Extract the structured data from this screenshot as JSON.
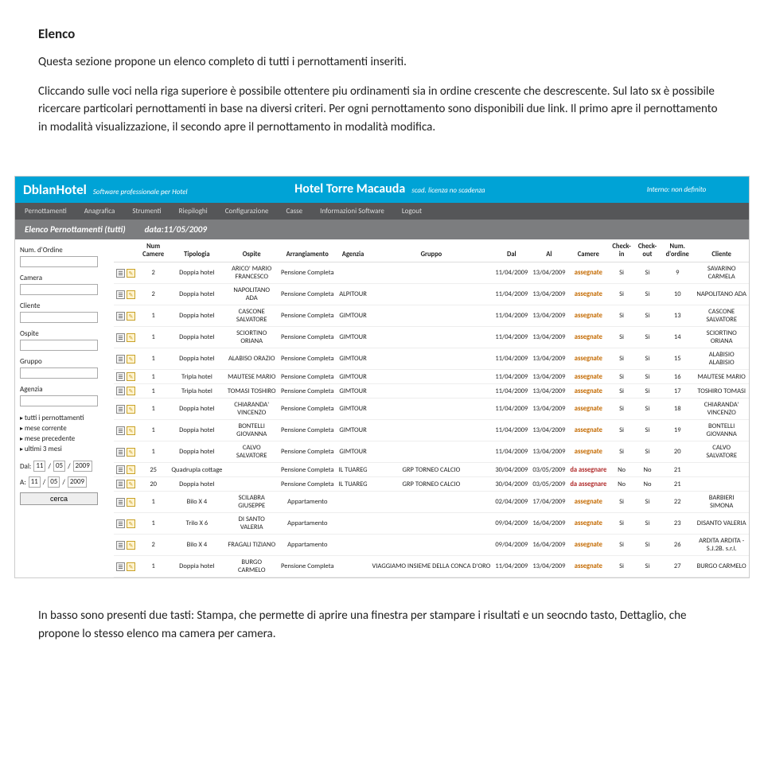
{
  "doc": {
    "title": "Elenco",
    "p1": "Questa sezione propone un elenco completo di tutti i pernottamenti inseriti.",
    "p2": "Cliccando sulle voci nella riga superiore è possibile ottentere piu ordinamenti sia in ordine crescente che descrescente. Sul lato sx è possibile ricercare particolari pernottamenti in base na diversi criteri. Per ogni pernottamento sono disponibili due link. Il primo apre il pernottamento in modalità visualizzazione, il secondo apre il pernottamento in modalità modifica.",
    "p3": "In basso sono presenti due tasti: Stampa, che permette di aprire una finestra per stampare i risultati e un seocndo tasto, Dettaglio, che propone lo stesso elenco ma camera per camera."
  },
  "header": {
    "brand": "DblanHotel",
    "tagline": "Software professionale per Hotel",
    "hotel": "Hotel Torre Macauda",
    "scadLabel": "scad.",
    "scadText": "licenza no scadenza",
    "interno": "Interno: non definito"
  },
  "nav": [
    "Pernottamenti",
    "Anagrafica",
    "Strumenti",
    "Riepiloghi",
    "Configurazione",
    "Casse",
    "Informazioni Software",
    "Logout"
  ],
  "subtitle": {
    "title": "Elenco Pernottamenti (tutti)",
    "date": "data:11/05/2009"
  },
  "sidebar": {
    "fields": [
      "Num. d'Ordine",
      "Camera",
      "Cliente",
      "Ospite",
      "Gruppo",
      "Agenzia"
    ],
    "filters": [
      "tutti i pernottamenti",
      "mese corrente",
      "mese precedente",
      "ultimi 3 mesi"
    ],
    "dalLabel": "Dal:",
    "aLabel": "A:",
    "date": {
      "d": "11",
      "m": "05",
      "y": "2009"
    },
    "cerca": "cerca"
  },
  "columns": [
    "",
    "Num Camere",
    "Tipologia",
    "Ospite",
    "Arrangiamento",
    "Agenzia",
    "Gruppo",
    "Dal",
    "Al",
    "Camere",
    "Check-in",
    "Check-out",
    "Num. d'ordine",
    "Cliente"
  ],
  "rows": [
    {
      "num": "2",
      "tip": "Doppia hotel",
      "osp": "ARICO' MARIO FRANCESCO",
      "arr": "Pensione Completa",
      "age": "",
      "grp": "",
      "dal": "11/04/2009",
      "al": "13/04/2009",
      "cam": "assegnate",
      "cin": "Si",
      "cout": "Si",
      "ord": "9",
      "cli": "SAVARINO CARMELA"
    },
    {
      "num": "2",
      "tip": "Doppia hotel",
      "osp": "NAPOLITANO ADA",
      "arr": "Pensione Completa",
      "age": "ALPITOUR",
      "grp": "",
      "dal": "11/04/2009",
      "al": "13/04/2009",
      "cam": "assegnate",
      "cin": "Si",
      "cout": "Si",
      "ord": "10",
      "cli": "NAPOLITANO ADA"
    },
    {
      "num": "1",
      "tip": "Doppia hotel",
      "osp": "CASCONE SALVATORE",
      "arr": "Pensione Completa",
      "age": "GIMTOUR",
      "grp": "",
      "dal": "11/04/2009",
      "al": "13/04/2009",
      "cam": "assegnate",
      "cin": "Si",
      "cout": "Si",
      "ord": "13",
      "cli": "CASCONE SALVATORE"
    },
    {
      "num": "1",
      "tip": "Doppia hotel",
      "osp": "SCIORTINO ORIANA",
      "arr": "Pensione Completa",
      "age": "GIMTOUR",
      "grp": "",
      "dal": "11/04/2009",
      "al": "13/04/2009",
      "cam": "assegnate",
      "cin": "Si",
      "cout": "Si",
      "ord": "14",
      "cli": "SCIORTINO ORIANA"
    },
    {
      "num": "1",
      "tip": "Doppia hotel",
      "osp": "ALABISO ORAZIO",
      "arr": "Pensione Completa",
      "age": "GIMTOUR",
      "grp": "",
      "dal": "11/04/2009",
      "al": "13/04/2009",
      "cam": "assegnate",
      "cin": "Si",
      "cout": "Si",
      "ord": "15",
      "cli": "ALABISIO ALABISIO"
    },
    {
      "num": "1",
      "tip": "Tripla hotel",
      "osp": "MAUTESE MARIO",
      "arr": "Pensione Completa",
      "age": "GIMTOUR",
      "grp": "",
      "dal": "11/04/2009",
      "al": "13/04/2009",
      "cam": "assegnate",
      "cin": "Si",
      "cout": "Si",
      "ord": "16",
      "cli": "MAUTESE MARIO"
    },
    {
      "num": "1",
      "tip": "Tripla hotel",
      "osp": "TOMASI TOSHIRO",
      "arr": "Pensione Completa",
      "age": "GIMTOUR",
      "grp": "",
      "dal": "11/04/2009",
      "al": "13/04/2009",
      "cam": "assegnate",
      "cin": "Si",
      "cout": "Si",
      "ord": "17",
      "cli": "TOSHIRO TOMASI"
    },
    {
      "num": "1",
      "tip": "Doppia hotel",
      "osp": "CHIARANDA' VINCENZO",
      "arr": "Pensione Completa",
      "age": "GIMTOUR",
      "grp": "",
      "dal": "11/04/2009",
      "al": "13/04/2009",
      "cam": "assegnate",
      "cin": "Si",
      "cout": "Si",
      "ord": "18",
      "cli": "CHIARANDA' VINCENZO"
    },
    {
      "num": "1",
      "tip": "Doppia hotel",
      "osp": "BONTELLI GIOVANNA",
      "arr": "Pensione Completa",
      "age": "GIMTOUR",
      "grp": "",
      "dal": "11/04/2009",
      "al": "13/04/2009",
      "cam": "assegnate",
      "cin": "Si",
      "cout": "Si",
      "ord": "19",
      "cli": "BONTELLI GIOVANNA"
    },
    {
      "num": "1",
      "tip": "Doppia hotel",
      "osp": "CALVO SALVATORE",
      "arr": "Pensione Completa",
      "age": "GIMTOUR",
      "grp": "",
      "dal": "11/04/2009",
      "al": "13/04/2009",
      "cam": "assegnate",
      "cin": "Si",
      "cout": "Si",
      "ord": "20",
      "cli": "CALVO SALVATORE"
    },
    {
      "num": "25",
      "tip": "Quadrupla cottage",
      "osp": "",
      "arr": "Pensione Completa",
      "age": "IL TUAREG",
      "grp": "GRP TORNEO CALCIO",
      "dal": "30/04/2009",
      "al": "03/05/2009",
      "cam": "da assegnare",
      "cin": "No",
      "cout": "No",
      "ord": "21",
      "cli": ""
    },
    {
      "num": "20",
      "tip": "Doppia hotel",
      "osp": "",
      "arr": "Pensione Completa",
      "age": "IL TUAREG",
      "grp": "GRP TORNEO CALCIO",
      "dal": "30/04/2009",
      "al": "03/05/2009",
      "cam": "da assegnare",
      "cin": "No",
      "cout": "No",
      "ord": "21",
      "cli": ""
    },
    {
      "num": "1",
      "tip": "Bilo X 4",
      "osp": "SCILABRA GIUSEPPE",
      "arr": "Appartamento",
      "age": "",
      "grp": "",
      "dal": "02/04/2009",
      "al": "17/04/2009",
      "cam": "assegnate",
      "cin": "Si",
      "cout": "Si",
      "ord": "22",
      "cli": "BARBIERI SIMONA"
    },
    {
      "num": "1",
      "tip": "Trilo X 6",
      "osp": "DI SANTO VALERIA",
      "arr": "Appartamento",
      "age": "",
      "grp": "",
      "dal": "09/04/2009",
      "al": "16/04/2009",
      "cam": "assegnate",
      "cin": "Si",
      "cout": "Si",
      "ord": "23",
      "cli": "DISANTO VALERIA"
    },
    {
      "num": "2",
      "tip": "Bilo X 4",
      "osp": "FRAGALI TIZIANO",
      "arr": "Appartamento",
      "age": "",
      "grp": "",
      "dal": "09/04/2009",
      "al": "16/04/2009",
      "cam": "assegnate",
      "cin": "Si",
      "cout": "Si",
      "ord": "26",
      "cli": "ARDITA ARDITA - S.J.2B. s.r.l."
    },
    {
      "num": "1",
      "tip": "Doppia hotel",
      "osp": "BURGO CARMELO",
      "arr": "Pensione Completa",
      "age": "",
      "grp": "VIAGGIAMO INSIEME DELLA CONCA D'ORO",
      "dal": "11/04/2009",
      "al": "13/04/2009",
      "cam": "assegnate",
      "cin": "Si",
      "cout": "Si",
      "ord": "27",
      "cli": "BURGO CARMELO"
    }
  ],
  "colors": {
    "headerBg": "#00a3d6",
    "navBg": "#555658",
    "subtitleBg": "#7c7d7f",
    "assegnate": "#c46a00",
    "daAssegnare": "#b02a2a"
  }
}
